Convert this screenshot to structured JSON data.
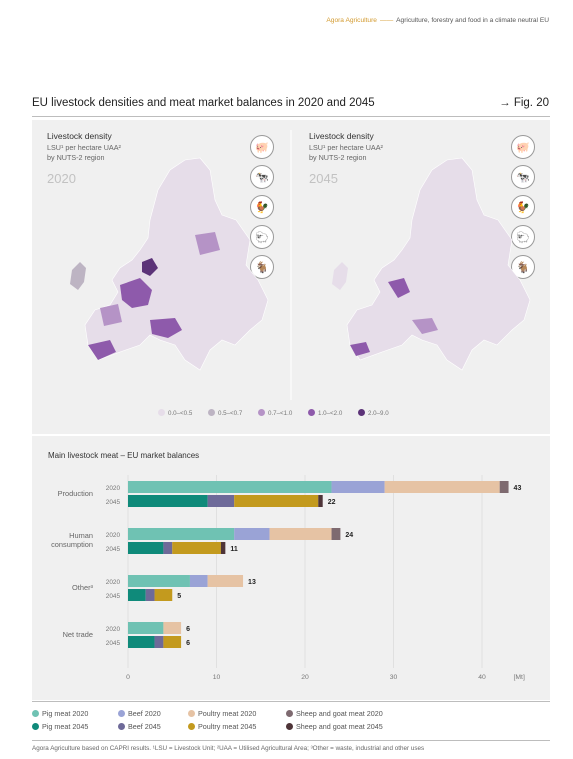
{
  "header": {
    "brand": "Agora Agriculture",
    "dash": "——",
    "tagline": "Agriculture, forestry and food in a climate neutral EU"
  },
  "figure": {
    "title": "EU livestock densities and meat market balances in 2020 and 2045",
    "ref": "→ Fig. 20"
  },
  "maps": [
    {
      "title": "Livestock density",
      "sub1": "LSU¹ per hectare UAA²",
      "sub2": "by NUTS-2 region",
      "year": "2020"
    },
    {
      "title": "Livestock density",
      "sub1": "LSU¹ per hectare UAA²",
      "sub2": "by NUTS-2 region",
      "year": "2045"
    }
  ],
  "icons": [
    "pig-icon",
    "cow-icon",
    "chicken-icon",
    "sheep-icon",
    "goat-icon"
  ],
  "map_legend": [
    {
      "label": "0.0–<0.5",
      "color": "#e6dde9"
    },
    {
      "label": "0.5–<0.7",
      "color": "#bdb4c3"
    },
    {
      "label": "0.7–<1.0",
      "color": "#b593c6"
    },
    {
      "label": "1.0–<2.0",
      "color": "#8e5aab"
    },
    {
      "label": "2.0–9.0",
      "color": "#5c3378"
    }
  ],
  "chart_data": {
    "type": "bar",
    "orientation": "horizontal",
    "stacked": true,
    "title": "Main livestock meat – EU market balances",
    "unit": "[Mt]",
    "xlim": [
      0,
      45
    ],
    "xticks": [
      0,
      10,
      20,
      30,
      40
    ],
    "groups": [
      {
        "label": "Production",
        "rows": [
          {
            "year": "2020",
            "values": [
              23,
              6,
              13,
              1
            ],
            "total": "43"
          },
          {
            "year": "2045",
            "values": [
              9,
              3,
              9.5,
              0.5
            ],
            "total": "22"
          }
        ]
      },
      {
        "label": "Human consumption",
        "rows": [
          {
            "year": "2020",
            "values": [
              12,
              4,
              7,
              1
            ],
            "total": "24"
          },
          {
            "year": "2045",
            "values": [
              4,
              1,
              5.5,
              0.5
            ],
            "total": "11"
          }
        ]
      },
      {
        "label": "Other³",
        "rows": [
          {
            "year": "2020",
            "values": [
              7,
              2,
              4,
              0
            ],
            "total": "13"
          },
          {
            "year": "2045",
            "values": [
              2,
              1,
              2,
              0
            ],
            "total": "5"
          }
        ]
      },
      {
        "label": "Net trade",
        "rows": [
          {
            "year": "2020",
            "values": [
              4,
              0,
              2,
              0
            ],
            "total": "6"
          },
          {
            "year": "2045",
            "values": [
              3,
              1,
              2,
              0
            ],
            "total": "6"
          }
        ]
      }
    ],
    "colors2020": [
      "#6fc2b3",
      "#9aa3d6",
      "#e6c3a4",
      "#7e6a70"
    ],
    "colors2045": [
      "#0f8a7a",
      "#6e6a99",
      "#c39a1e",
      "#4e3438"
    ]
  },
  "legend": [
    {
      "label": "Pig meat 2020",
      "color": "#6fc2b3"
    },
    {
      "label": "Beef 2020",
      "color": "#9aa3d6"
    },
    {
      "label": "Poultry meat 2020",
      "color": "#e6c3a4"
    },
    {
      "label": "Sheep and goat meat 2020",
      "color": "#7e6a70"
    },
    {
      "label": "Pig meat 2045",
      "color": "#0f8a7a"
    },
    {
      "label": "Beef 2045",
      "color": "#6e6a99"
    },
    {
      "label": "Poultry meat 2045",
      "color": "#c39a1e"
    },
    {
      "label": "Sheep and goat meat 2045",
      "color": "#4e3438"
    }
  ],
  "footnote": "Agora Agriculture based on CAPRI results. ¹LSU = Livestock Unit; ²UAA = Utilised Agricultural Area; ³Other = waste, industrial and other uses"
}
